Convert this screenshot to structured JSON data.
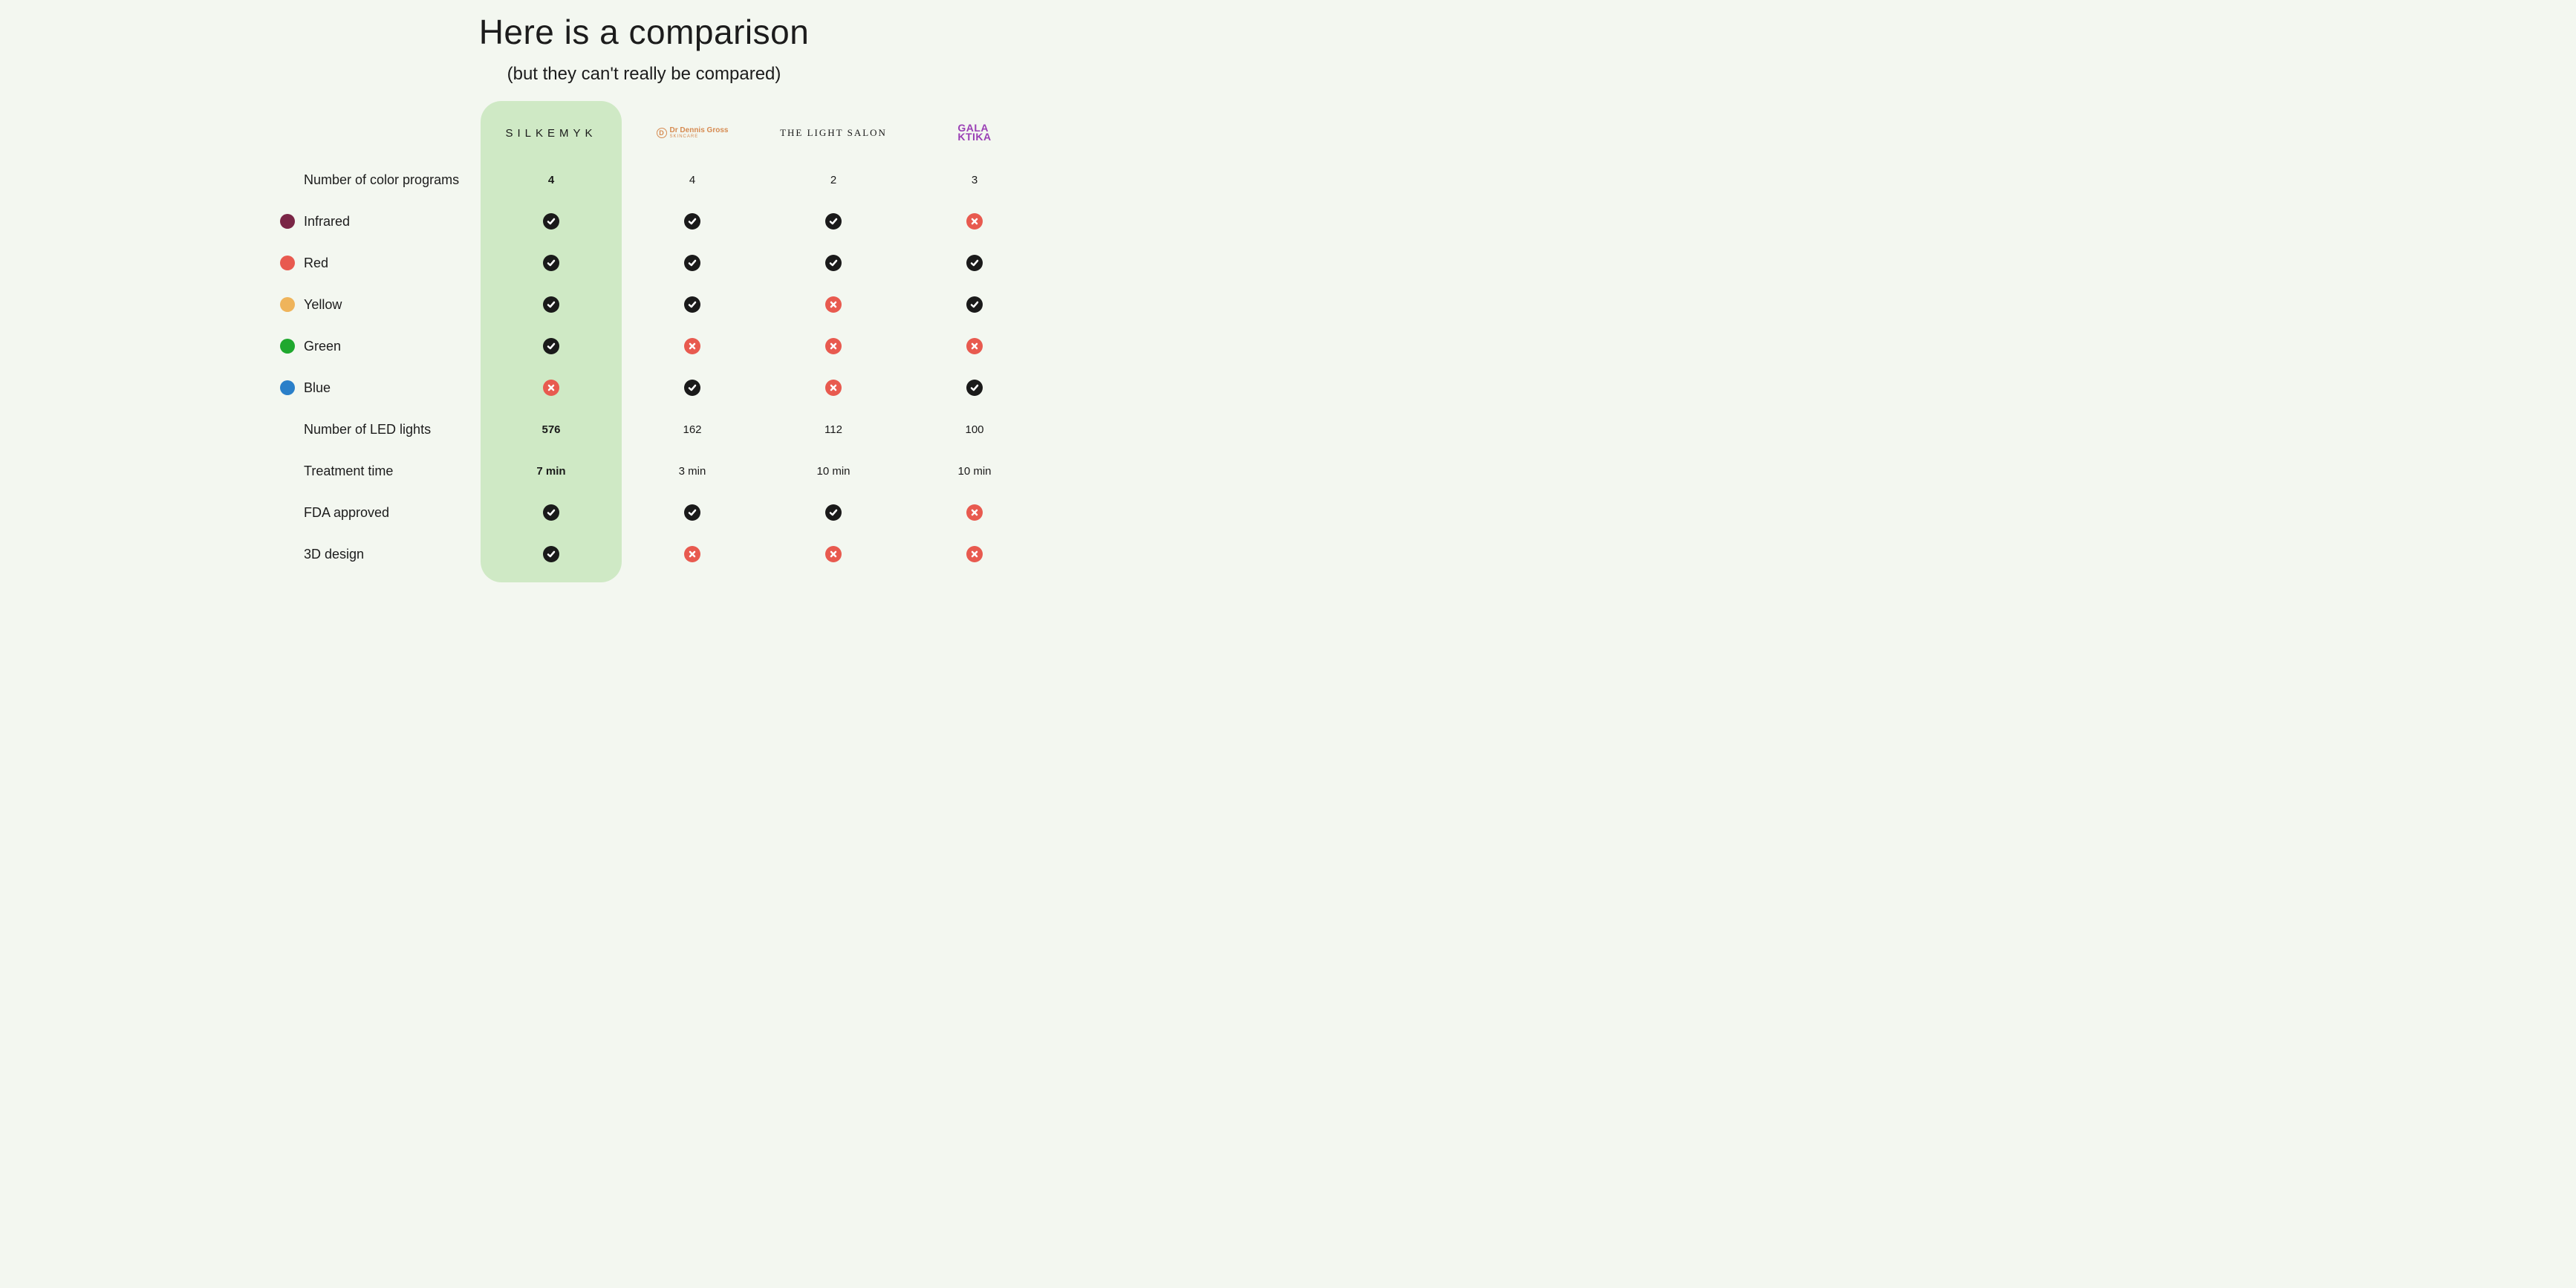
{
  "page": {
    "title": "Here is a comparison",
    "subtitle": "(but they can't really be compared)",
    "background_color": "#f3f7f0",
    "highlight_color": "#cfe9c5",
    "text_color": "#1c1c1c"
  },
  "brands": [
    {
      "key": "silkemyk",
      "name": "SILKEMYK",
      "style": "spaced-caps",
      "color": "#1a1a1a",
      "highlighted": true
    },
    {
      "key": "drdennis",
      "name_top": "Dr Dennis Gross",
      "name_sub": "SKINCARE",
      "style": "logo-orange",
      "color": "#d68a50",
      "highlighted": false
    },
    {
      "key": "lightsalon",
      "name": "THE LIGHT SALON",
      "style": "serif-caps",
      "color": "#1a1a1a",
      "highlighted": false
    },
    {
      "key": "galaktika",
      "name_line1": "GALA",
      "name_line2": "KTIKA",
      "style": "purple-block",
      "color": "#9a3fb5",
      "highlighted": false
    }
  ],
  "feature_dots": {
    "infrared": "#7a2646",
    "red": "#e85a4f",
    "yellow": "#efb45b",
    "green": "#1fa82e",
    "blue": "#2a7fc9"
  },
  "icon_colors": {
    "check_bg": "#1a1a1a",
    "cross_bg": "#e85a4f",
    "glyph": "#ffffff"
  },
  "rows": [
    {
      "label": "Number of color programs",
      "dot": null,
      "type": "text",
      "values": [
        "4",
        "4",
        "2",
        "3"
      ]
    },
    {
      "label": "Infrared",
      "dot": "infrared",
      "type": "bool",
      "values": [
        true,
        true,
        true,
        false
      ]
    },
    {
      "label": "Red",
      "dot": "red",
      "type": "bool",
      "values": [
        true,
        true,
        true,
        true
      ]
    },
    {
      "label": "Yellow",
      "dot": "yellow",
      "type": "bool",
      "values": [
        true,
        true,
        false,
        true
      ]
    },
    {
      "label": "Green",
      "dot": "green",
      "type": "bool",
      "values": [
        true,
        false,
        false,
        false
      ]
    },
    {
      "label": "Blue",
      "dot": "blue",
      "type": "bool",
      "values": [
        false,
        true,
        false,
        true
      ]
    },
    {
      "label": "Number of LED lights",
      "dot": null,
      "type": "text",
      "values": [
        "576",
        "162",
        "112",
        "100"
      ]
    },
    {
      "label": "Treatment time",
      "dot": null,
      "type": "text",
      "values": [
        "7 min",
        "3 min",
        "10 min",
        "10 min"
      ]
    },
    {
      "label": "FDA approved",
      "dot": null,
      "type": "bool",
      "values": [
        true,
        true,
        true,
        false
      ]
    },
    {
      "label": "3D design",
      "dot": null,
      "type": "bool",
      "values": [
        true,
        false,
        false,
        false
      ]
    }
  ]
}
